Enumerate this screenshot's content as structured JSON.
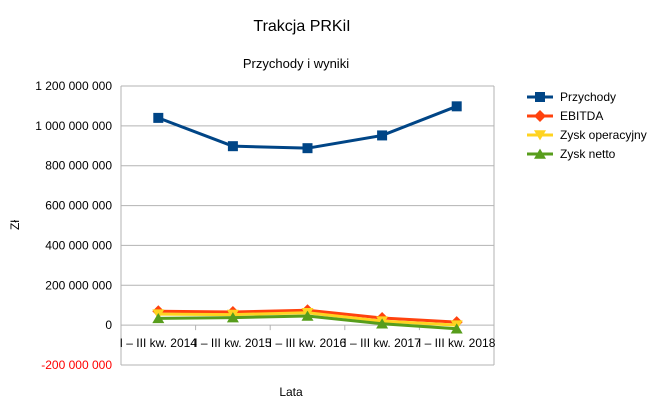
{
  "chart_data": {
    "type": "line",
    "title": "Trakcja PRKiI",
    "subtitle": "Przychody i wyniki",
    "xlabel": "Lata",
    "ylabel": "Zł",
    "categories": [
      "I – III kw. 2014",
      "I – III kw. 2015",
      "I – III kw. 2016",
      "I – III kw. 2017",
      "I – III kw. 2018"
    ],
    "ylim": [
      -200000000,
      1200000000
    ],
    "yticks": [
      -200000000,
      0,
      200000000,
      400000000,
      600000000,
      800000000,
      1000000000,
      1200000000
    ],
    "ytick_labels": [
      "-200 000 000",
      "0",
      "200 000 000",
      "400 000 000",
      "600 000 000",
      "800 000 000",
      "1 000 000 000",
      "1 200 000 000"
    ],
    "negative_tick_color": "#ff0000",
    "grid": true,
    "legend_position": "right",
    "series": [
      {
        "name": "Przychody",
        "color": "#004586",
        "marker": "square",
        "values": [
          1040000000,
          898000000,
          888000000,
          952000000,
          1098000000
        ]
      },
      {
        "name": "EBITDA",
        "color": "#ff420e",
        "marker": "diamond",
        "values": [
          70000000,
          66000000,
          75000000,
          36000000,
          15000000
        ]
      },
      {
        "name": "Zysk operacyjny",
        "color": "#ffd320",
        "marker": "triangle-down",
        "values": [
          55000000,
          53000000,
          62000000,
          20000000,
          0
        ]
      },
      {
        "name": "Zysk netto",
        "color": "#579d1c",
        "marker": "triangle-up",
        "values": [
          34000000,
          38000000,
          46000000,
          7000000,
          -18000000
        ]
      }
    ]
  }
}
